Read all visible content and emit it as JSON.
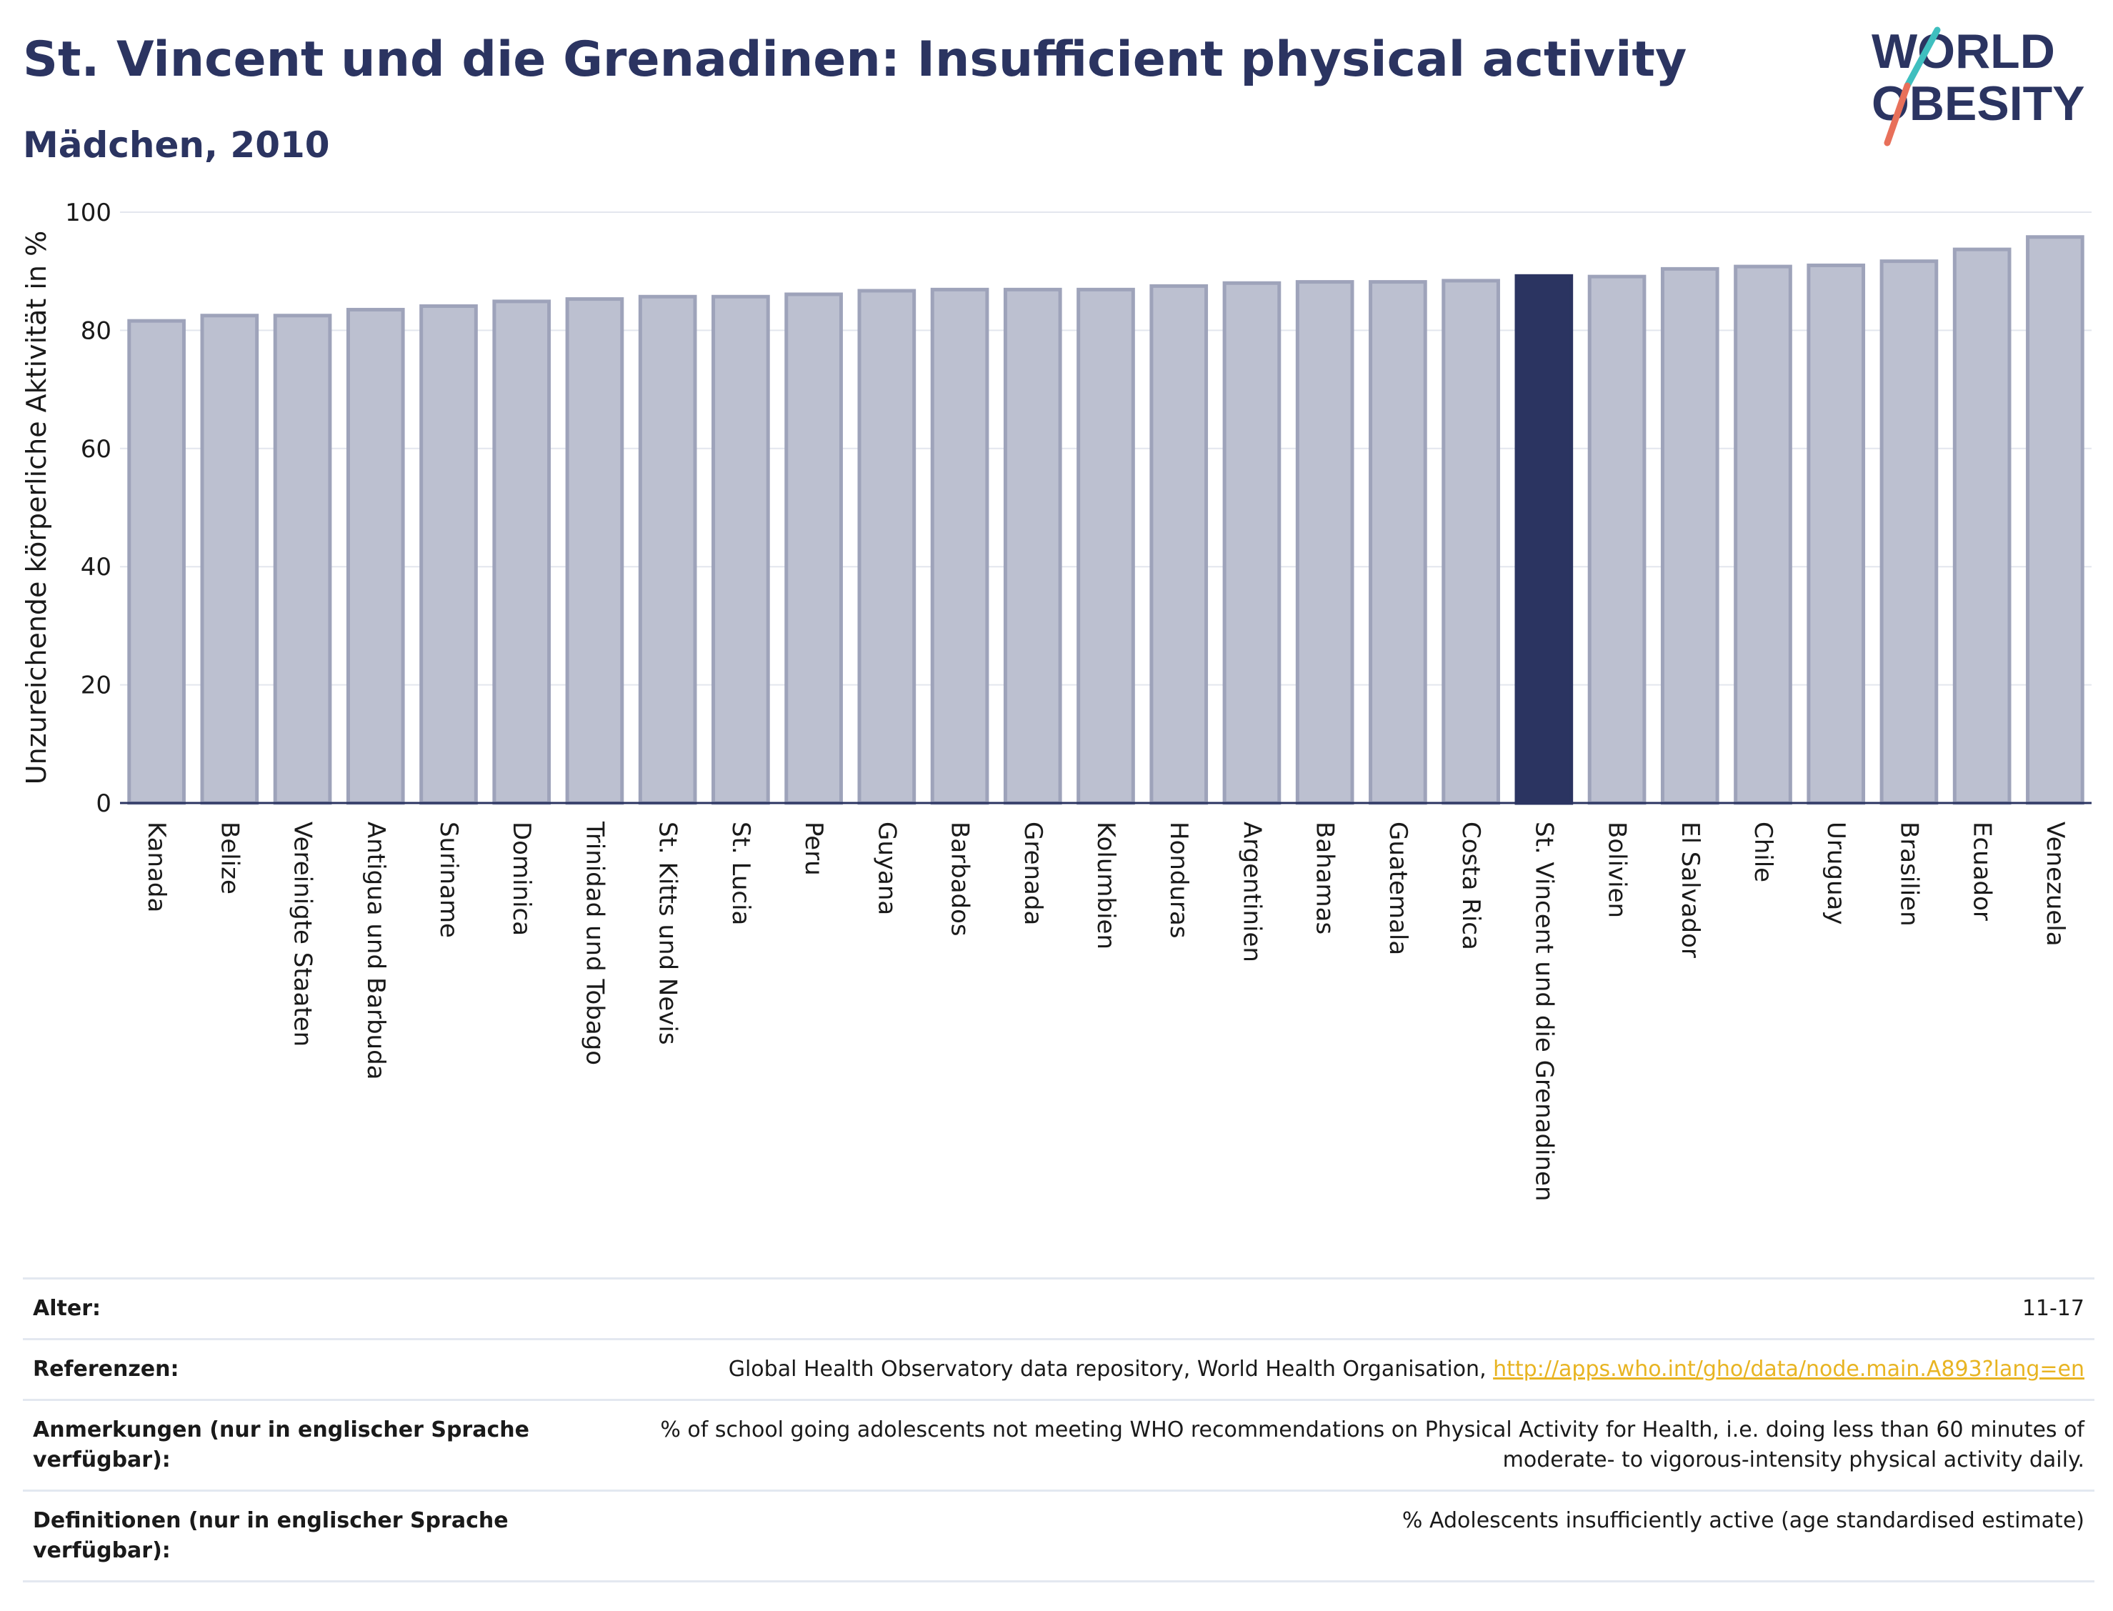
{
  "header": {
    "title": "St. Vincent und die Grenadinen: Insufficient physical activity",
    "subtitle": "Mädchen, 2010"
  },
  "logo": {
    "line1": "WORLD",
    "line2": "OBESITY",
    "accent_colors": [
      "#3fbfbf",
      "#e8705a"
    ]
  },
  "colors": {
    "bar": "#bcc0d0",
    "bar_edge": "#9ea3ba",
    "highlight": "#2b3461",
    "grid": "#e3e6ee",
    "link": "#e8b422"
  },
  "chart_data": {
    "type": "bar",
    "title": "St. Vincent und die Grenadinen: Insufficient physical activity",
    "ylabel": "Unzureichende körperliche Aktivität in %",
    "ylim": [
      0,
      100
    ],
    "yticks": [
      0,
      20,
      40,
      60,
      80,
      100
    ],
    "grid": true,
    "highlight": "St. Vincent und die Grenadinen",
    "categories": [
      "Kanada",
      "Belize",
      "Vereinigte Staaten",
      "Antigua und Barbuda",
      "Suriname",
      "Dominica",
      "Trinidad und Tobago",
      "St. Kitts und Nevis",
      "St. Lucia",
      "Peru",
      "Guyana",
      "Barbados",
      "Grenada",
      "Kolumbien",
      "Honduras",
      "Argentinien",
      "Bahamas",
      "Guatemala",
      "Costa Rica",
      "St. Vincent und die Grenadinen",
      "Bolivien",
      "El Salvador",
      "Chile",
      "Uruguay",
      "Brasilien",
      "Ecuador",
      "Venezuela"
    ],
    "values": [
      81.6,
      82.5,
      82.5,
      83.5,
      84.1,
      84.9,
      85.3,
      85.7,
      85.7,
      86.1,
      86.7,
      86.9,
      86.9,
      86.9,
      87.5,
      88.0,
      88.2,
      88.2,
      88.4,
      89.2,
      89.1,
      90.4,
      90.8,
      91.0,
      91.7,
      93.7,
      95.8
    ]
  },
  "meta": [
    {
      "key": "Alter:",
      "value": "11-17"
    },
    {
      "key": "Referenzen:",
      "value": "Global Health Observatory data repository, World Health Organisation, ",
      "link": "http://apps.who.int/gho/data/node.main.A893?lang=en"
    },
    {
      "key": "Anmerkungen (nur in englischer Sprache verfügbar):",
      "value": "% of school going adolescents not meeting WHO recommendations on Physical Activity for Health, i.e. doing less than 60 minutes of moderate- to vigorous-intensity physical activity daily."
    },
    {
      "key": "Definitionen (nur in englischer Sprache verfügbar):",
      "value": "% Adolescents insufficiently active (age standardised estimate)"
    }
  ]
}
